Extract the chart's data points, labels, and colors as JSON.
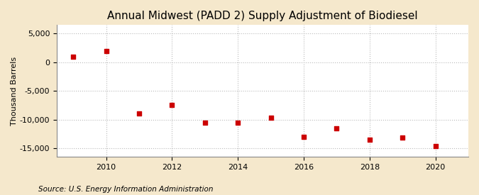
{
  "title": "Annual Midwest (PADD 2) Supply Adjustment of Biodiesel",
  "ylabel": "Thousand Barrels",
  "source": "Source: U.S. Energy Information Administration",
  "fig_bg_color": "#f5e8cc",
  "plot_bg_color": "#ffffff",
  "years": [
    2009,
    2010,
    2011,
    2012,
    2013,
    2014,
    2015,
    2016,
    2017,
    2018,
    2019,
    2020
  ],
  "values": [
    1000,
    2000,
    -9000,
    -7500,
    -10500,
    -10500,
    -9700,
    -13000,
    -11500,
    -13500,
    -13200,
    -14600
  ],
  "marker_color": "#cc0000",
  "marker_size": 25,
  "ylim": [
    -16500,
    6500
  ],
  "yticks": [
    -15000,
    -10000,
    -5000,
    0,
    5000
  ],
  "xticks": [
    2010,
    2012,
    2014,
    2016,
    2018,
    2020
  ],
  "xlim": [
    2008.5,
    2021
  ],
  "grid_color": "#bbbbbb",
  "title_fontsize": 11,
  "label_fontsize": 8,
  "tick_fontsize": 8,
  "source_fontsize": 7.5
}
